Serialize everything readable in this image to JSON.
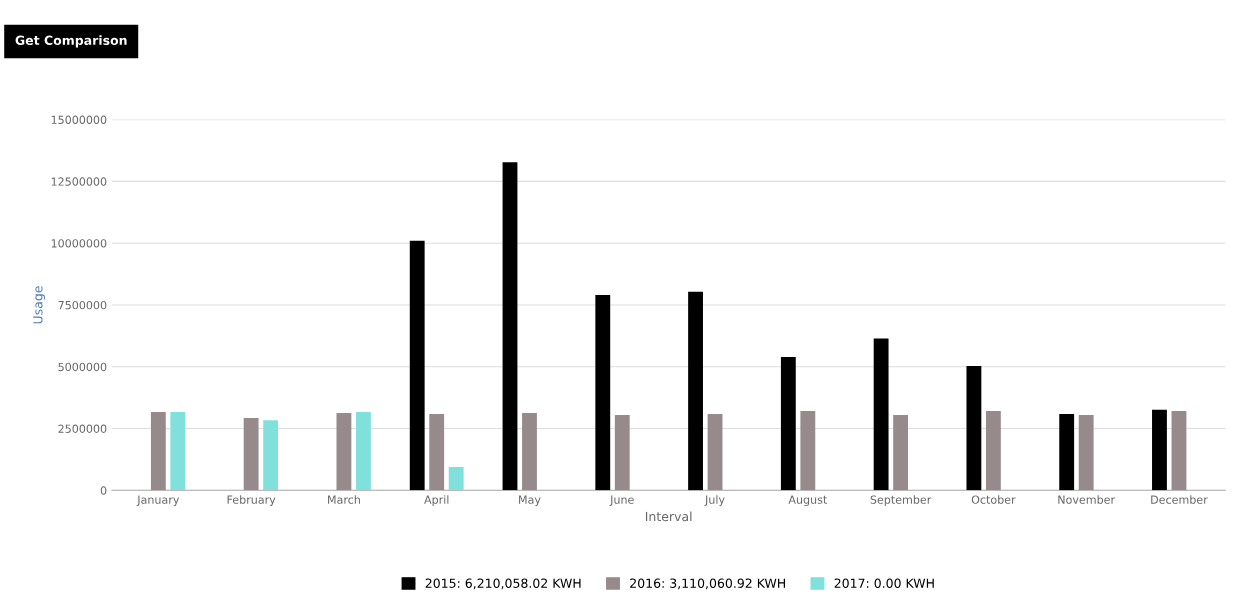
{
  "chart_data": {
    "type": "bar",
    "xlabel": "Interval",
    "ylabel": "Usage",
    "annotations": [
      "Get Comparison"
    ],
    "categories": [
      "January",
      "February",
      "March",
      "April",
      "May",
      "June",
      "July",
      "August",
      "September",
      "October",
      "November",
      "December"
    ],
    "series": [
      {
        "name": "2015: 6,210,058.02 KWH",
        "color": "#000000",
        "values": [
          null,
          null,
          null,
          10100000,
          13270000,
          7900000,
          8040000,
          5400000,
          6140000,
          5030000,
          3090000,
          3260000
        ]
      },
      {
        "name": "2016: 3,110,060.92 KWH",
        "color": "#968a8c",
        "values": [
          3170000,
          2930000,
          3130000,
          3090000,
          3130000,
          3050000,
          3090000,
          3210000,
          3050000,
          3210000,
          3050000,
          3210000
        ]
      },
      {
        "name": "2017: 0.00 KWH",
        "color": "#7fe0dc",
        "values": [
          3170000,
          2840000,
          3170000,
          950000,
          null,
          null,
          null,
          null,
          null,
          null,
          null,
          null
        ]
      }
    ],
    "ylim": [
      0,
      15000000
    ],
    "yticks": [
      0,
      2500000,
      5000000,
      7500000,
      10000000,
      12500000,
      15000000
    ],
    "grid": "y",
    "legend": "bottom"
  }
}
